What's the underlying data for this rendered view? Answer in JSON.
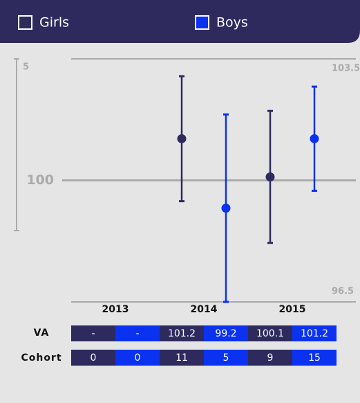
{
  "chart_data": {
    "type": "errorbar",
    "categories": [
      "2013",
      "2014",
      "2015"
    ],
    "series": [
      {
        "name": "Girls",
        "color": "#2e2a5e",
        "values": [
          null,
          101.2,
          100.1
        ],
        "errors": [
          null,
          1.8,
          1.9
        ],
        "cohort": [
          0,
          11,
          9
        ]
      },
      {
        "name": "Boys",
        "color": "#0a32f0",
        "values": [
          null,
          99.2,
          101.2
        ],
        "errors": [
          null,
          2.7,
          1.5
        ],
        "cohort": [
          0,
          5,
          15
        ]
      }
    ],
    "ylim": [
      96.5,
      103.5
    ],
    "yticks": [
      96.5,
      100,
      103.5
    ],
    "grid": true,
    "left_label": "5",
    "missing_label": "-",
    "table_rows": [
      "VA",
      "Cohort"
    ]
  }
}
